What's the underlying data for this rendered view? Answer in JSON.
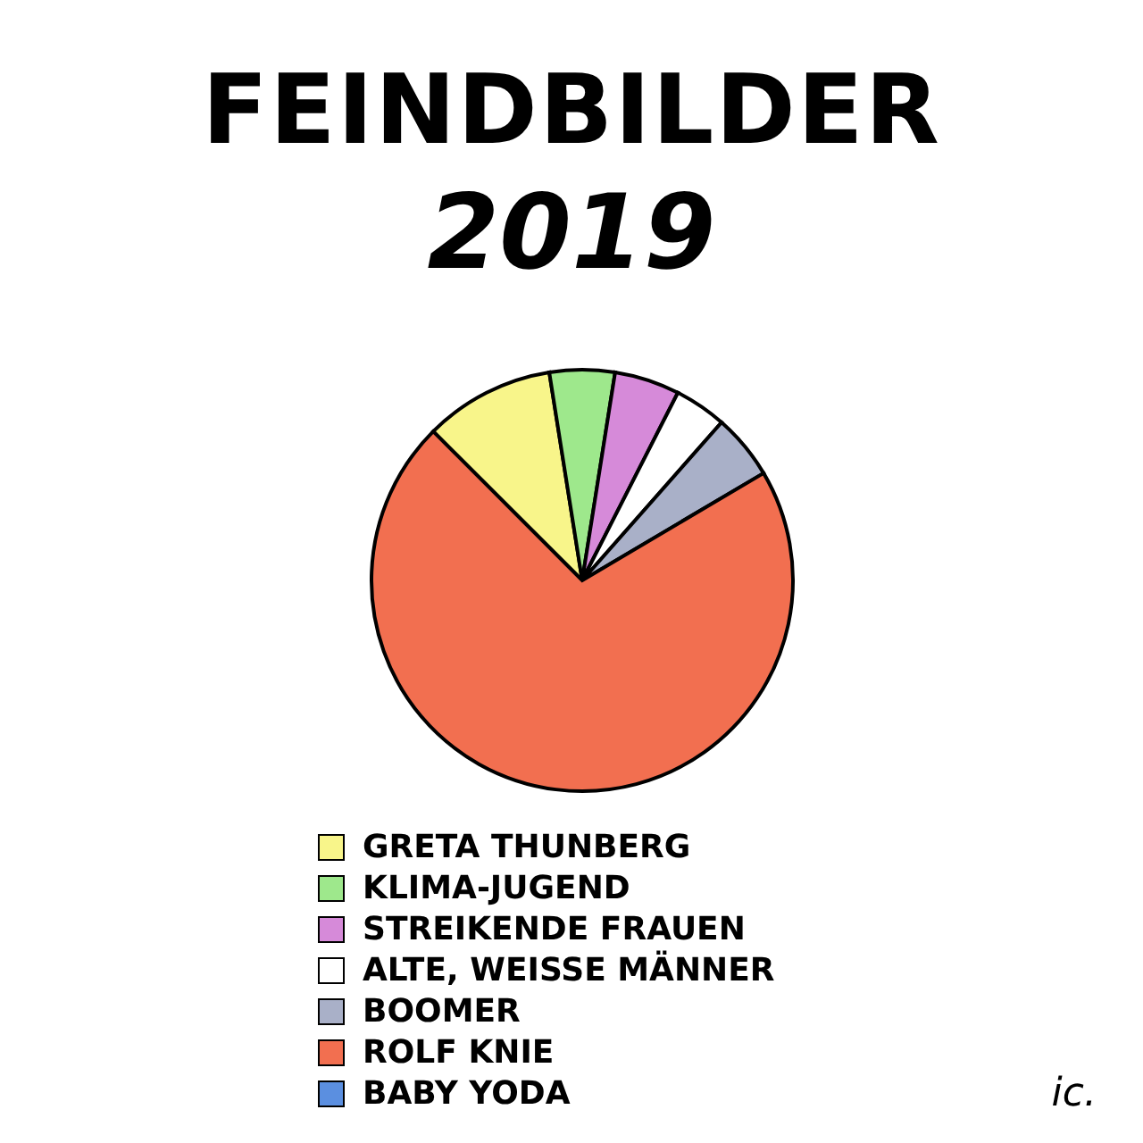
{
  "chart_data": {
    "type": "pie",
    "title": "FEINDBILDER",
    "subtitle": "2019",
    "categories": [
      "GRETA THUNBERG",
      "KLIMA-JUGEND",
      "STREIKENDE FRAUEN",
      "ALTE, WEISSE MÄNNER",
      "BOOMER",
      "ROLF KNIE",
      "BABY YODA"
    ],
    "values": [
      10,
      5,
      5,
      4,
      5,
      71,
      0
    ],
    "colors": [
      "#f8f58a",
      "#9ee88c",
      "#d68ad9",
      "#ffffff",
      "#a9b0c8",
      "#f26f50",
      "#5b8fe0"
    ],
    "legend": "bottom left",
    "annotations": [
      "ic."
    ]
  }
}
